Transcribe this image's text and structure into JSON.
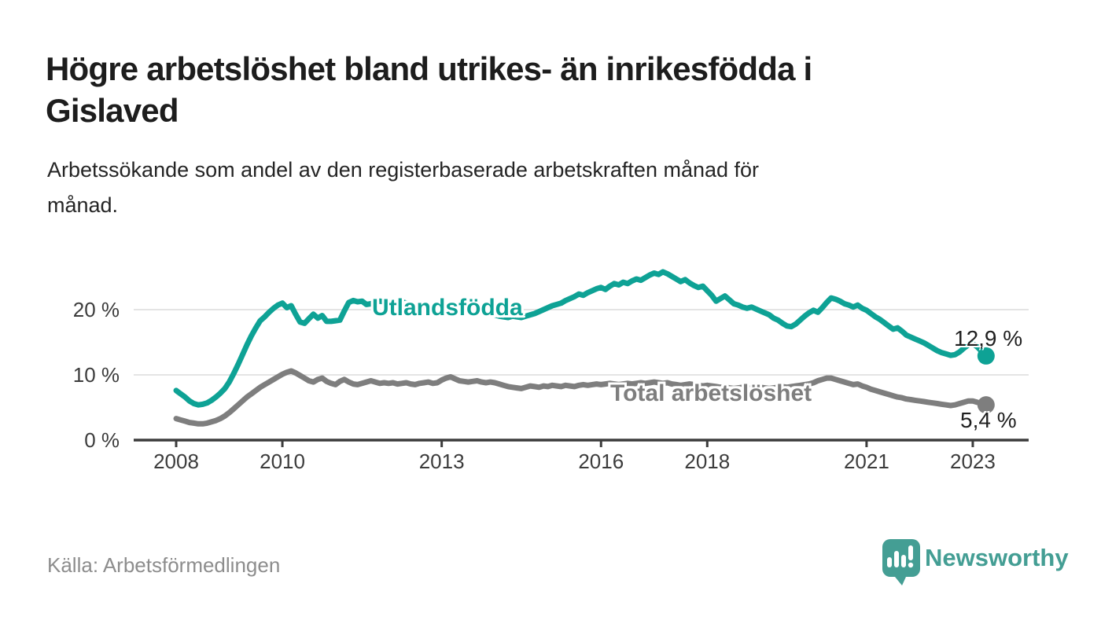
{
  "header": {
    "title_lines": [
      "Högre arbetslöshet bland utrikes- än inrikesfödda i",
      "Gislaved"
    ],
    "subtitle_lines": [
      "Arbetssökande som andel av den registerbaserade arbetskraften månad för",
      "månad."
    ]
  },
  "chart_data": {
    "type": "line",
    "title": "Högre arbetslöshet bland utrikes- än inrikesfödda i Gislaved",
    "subtitle": "Arbetssökande som andel av den registerbaserade arbetskraften månad för månad.",
    "x_unit": "monthly",
    "x_start_year": 2008,
    "x_end": "2023-04",
    "ylim": [
      0,
      27
    ],
    "grid": "horizontal",
    "legend_position": "inline-labels-on-lines",
    "x_ticks": [
      {
        "label": "2008",
        "year": 2008
      },
      {
        "label": "2010",
        "year": 2010
      },
      {
        "label": "2013",
        "year": 2013
      },
      {
        "label": "2016",
        "year": 2016
      },
      {
        "label": "2018",
        "year": 2018
      },
      {
        "label": "2021",
        "year": 2021
      },
      {
        "label": "2023",
        "year": 2023
      }
    ],
    "y_ticks": [
      {
        "label": "0 %",
        "value": 0
      },
      {
        "label": "10 %",
        "value": 10
      },
      {
        "label": "20 %",
        "value": 20
      }
    ],
    "series": [
      {
        "name": "Utlandsfödda",
        "color": "#0ea295",
        "end_label": "12,9 %",
        "end_value": 12.9,
        "values": [
          7.6,
          7.1,
          6.6,
          6.0,
          5.6,
          5.4,
          5.5,
          5.7,
          6.1,
          6.6,
          7.2,
          7.9,
          8.9,
          10.2,
          11.6,
          13.1,
          14.6,
          16.0,
          17.2,
          18.3,
          18.9,
          19.6,
          20.2,
          20.7,
          21.0,
          20.3,
          20.6,
          19.3,
          18.1,
          17.9,
          18.6,
          19.3,
          18.7,
          19.1,
          18.2,
          18.2,
          18.3,
          18.4,
          19.8,
          21.1,
          21.4,
          21.2,
          21.3,
          20.8,
          20.9,
          21.1,
          21.3,
          21.2,
          21.3,
          21.1,
          21.4,
          21.2,
          21.0,
          20.8,
          20.7,
          20.9,
          20.7,
          20.5,
          20.4,
          20.6,
          20.5,
          20.7,
          20.4,
          20.2,
          20.0,
          19.9,
          19.8,
          19.6,
          19.7,
          19.5,
          19.4,
          19.3,
          19.2,
          19.0,
          18.9,
          18.8,
          19.0,
          18.9,
          18.8,
          19.0,
          19.2,
          19.4,
          19.7,
          20.0,
          20.3,
          20.6,
          20.8,
          21.0,
          21.4,
          21.7,
          22.0,
          22.4,
          22.2,
          22.6,
          22.9,
          23.2,
          23.4,
          23.1,
          23.6,
          24.0,
          23.8,
          24.2,
          24.0,
          24.4,
          24.7,
          24.5,
          24.9,
          25.3,
          25.6,
          25.4,
          25.8,
          25.5,
          25.1,
          24.7,
          24.3,
          24.6,
          24.1,
          23.7,
          23.4,
          23.6,
          22.9,
          22.2,
          21.3,
          21.7,
          22.1,
          21.5,
          20.9,
          20.7,
          20.4,
          20.2,
          20.4,
          20.1,
          19.8,
          19.5,
          19.2,
          18.7,
          18.4,
          17.9,
          17.5,
          17.4,
          17.8,
          18.4,
          19.0,
          19.5,
          19.9,
          19.6,
          20.3,
          21.1,
          21.8,
          21.6,
          21.3,
          20.9,
          20.7,
          20.4,
          20.7,
          20.2,
          19.9,
          19.4,
          18.9,
          18.5,
          18.0,
          17.5,
          17.0,
          17.2,
          16.7,
          16.1,
          15.8,
          15.5,
          15.2,
          14.9,
          14.5,
          14.1,
          13.7,
          13.4,
          13.2,
          13.0,
          13.1,
          13.5,
          14.1,
          14.6,
          14.8,
          14.3,
          13.6,
          12.9
        ]
      },
      {
        "name": "Total arbetslöshet",
        "color": "#7e7e7e",
        "end_label": "5,4 %",
        "end_value": 5.4,
        "values": [
          3.3,
          3.1,
          2.9,
          2.7,
          2.6,
          2.5,
          2.5,
          2.6,
          2.8,
          3.0,
          3.3,
          3.7,
          4.2,
          4.8,
          5.4,
          6.0,
          6.6,
          7.1,
          7.6,
          8.1,
          8.5,
          8.9,
          9.3,
          9.7,
          10.1,
          10.4,
          10.6,
          10.3,
          9.9,
          9.5,
          9.1,
          8.9,
          9.3,
          9.5,
          9.0,
          8.7,
          8.5,
          9.0,
          9.3,
          8.9,
          8.6,
          8.5,
          8.7,
          8.9,
          9.1,
          8.9,
          8.7,
          8.8,
          8.7,
          8.8,
          8.6,
          8.7,
          8.8,
          8.6,
          8.5,
          8.7,
          8.8,
          8.9,
          8.7,
          8.8,
          9.2,
          9.5,
          9.7,
          9.4,
          9.1,
          9.0,
          8.9,
          9.0,
          9.1,
          8.9,
          8.8,
          8.9,
          8.8,
          8.6,
          8.4,
          8.2,
          8.1,
          8.0,
          7.9,
          8.1,
          8.3,
          8.2,
          8.1,
          8.3,
          8.2,
          8.4,
          8.3,
          8.2,
          8.4,
          8.3,
          8.2,
          8.4,
          8.5,
          8.4,
          8.5,
          8.6,
          8.5,
          8.6,
          8.7,
          8.6,
          8.5,
          8.6,
          8.7,
          8.6,
          8.7,
          8.8,
          8.7,
          8.8,
          8.9,
          8.8,
          8.7,
          8.8,
          8.6,
          8.5,
          8.4,
          8.5,
          8.6,
          8.5,
          8.4,
          8.3,
          8.4,
          8.3,
          8.2,
          8.1,
          8.2,
          8.0,
          7.9,
          8.0,
          8.1,
          8.0,
          7.9,
          8.0,
          8.1,
          8.0,
          7.9,
          8.0,
          8.1,
          8.2,
          8.1,
          8.2,
          8.3,
          8.4,
          8.5,
          8.6,
          8.8,
          9.1,
          9.3,
          9.5,
          9.5,
          9.3,
          9.1,
          8.9,
          8.7,
          8.5,
          8.6,
          8.3,
          8.1,
          7.8,
          7.6,
          7.4,
          7.2,
          7.0,
          6.8,
          6.6,
          6.5,
          6.3,
          6.2,
          6.1,
          6.0,
          5.9,
          5.8,
          5.7,
          5.6,
          5.5,
          5.4,
          5.3,
          5.4,
          5.6,
          5.8,
          6.0,
          6.0,
          5.8,
          5.6,
          5.4
        ]
      }
    ]
  },
  "footer": {
    "source": "Källa: Arbetsförmedlingen",
    "brand": "Newsworthy"
  },
  "icons": {
    "logo": "newsworthy-bubble-bar-chart-icon"
  },
  "colors": {
    "accent_teal": "#0ea295",
    "series_gray": "#7e7e7e",
    "brand_teal": "#449e94",
    "axis": "#3c3c3c",
    "gridline": "#dbdbdb",
    "title_text": "#1d1d1d",
    "muted_text": "#8d8d8d"
  }
}
